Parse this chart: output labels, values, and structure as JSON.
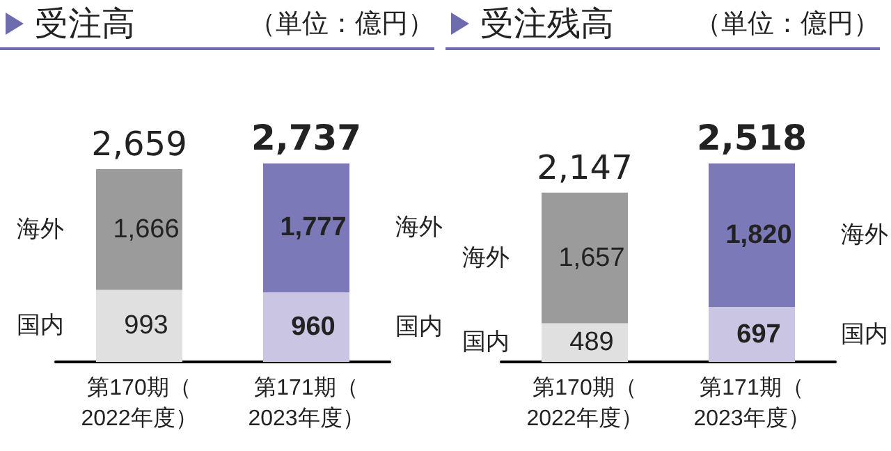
{
  "chart_data": [
    {
      "type": "bar",
      "title": "受注高",
      "subtitle": "（単位：億円）",
      "stacked": true,
      "data_labels": true,
      "categories": [
        "第170期（2022年度）",
        "第171期（2023年度）"
      ],
      "series": [
        {
          "name": "国内",
          "colors": [
            "#e0e0e0",
            "#c9c5e3"
          ],
          "values": [
            993,
            960
          ],
          "value_labels": [
            "993",
            "960"
          ]
        },
        {
          "name": "海外",
          "colors": [
            "#9b9b9b",
            "#7c79b8"
          ],
          "values": [
            1666,
            1777
          ],
          "value_labels": [
            "1,666",
            "1,777"
          ]
        }
      ],
      "totals": [
        "2,659",
        "2,737"
      ]
    },
    {
      "type": "bar",
      "title": "受注残高",
      "subtitle": "（単位：億円）",
      "stacked": true,
      "data_labels": true,
      "categories": [
        "第170期（2022年度）",
        "第171期（2023年度）"
      ],
      "series": [
        {
          "name": "国内",
          "colors": [
            "#e0e0e0",
            "#c9c5e3"
          ],
          "values": [
            489,
            697
          ],
          "value_labels": [
            "489",
            "697"
          ]
        },
        {
          "name": "海外",
          "colors": [
            "#9b9b9b",
            "#7c79b8"
          ],
          "values": [
            1657,
            1820
          ],
          "value_labels": [
            "1,657",
            "1,820"
          ]
        }
      ],
      "totals": [
        "2,147",
        "2,518"
      ]
    }
  ]
}
